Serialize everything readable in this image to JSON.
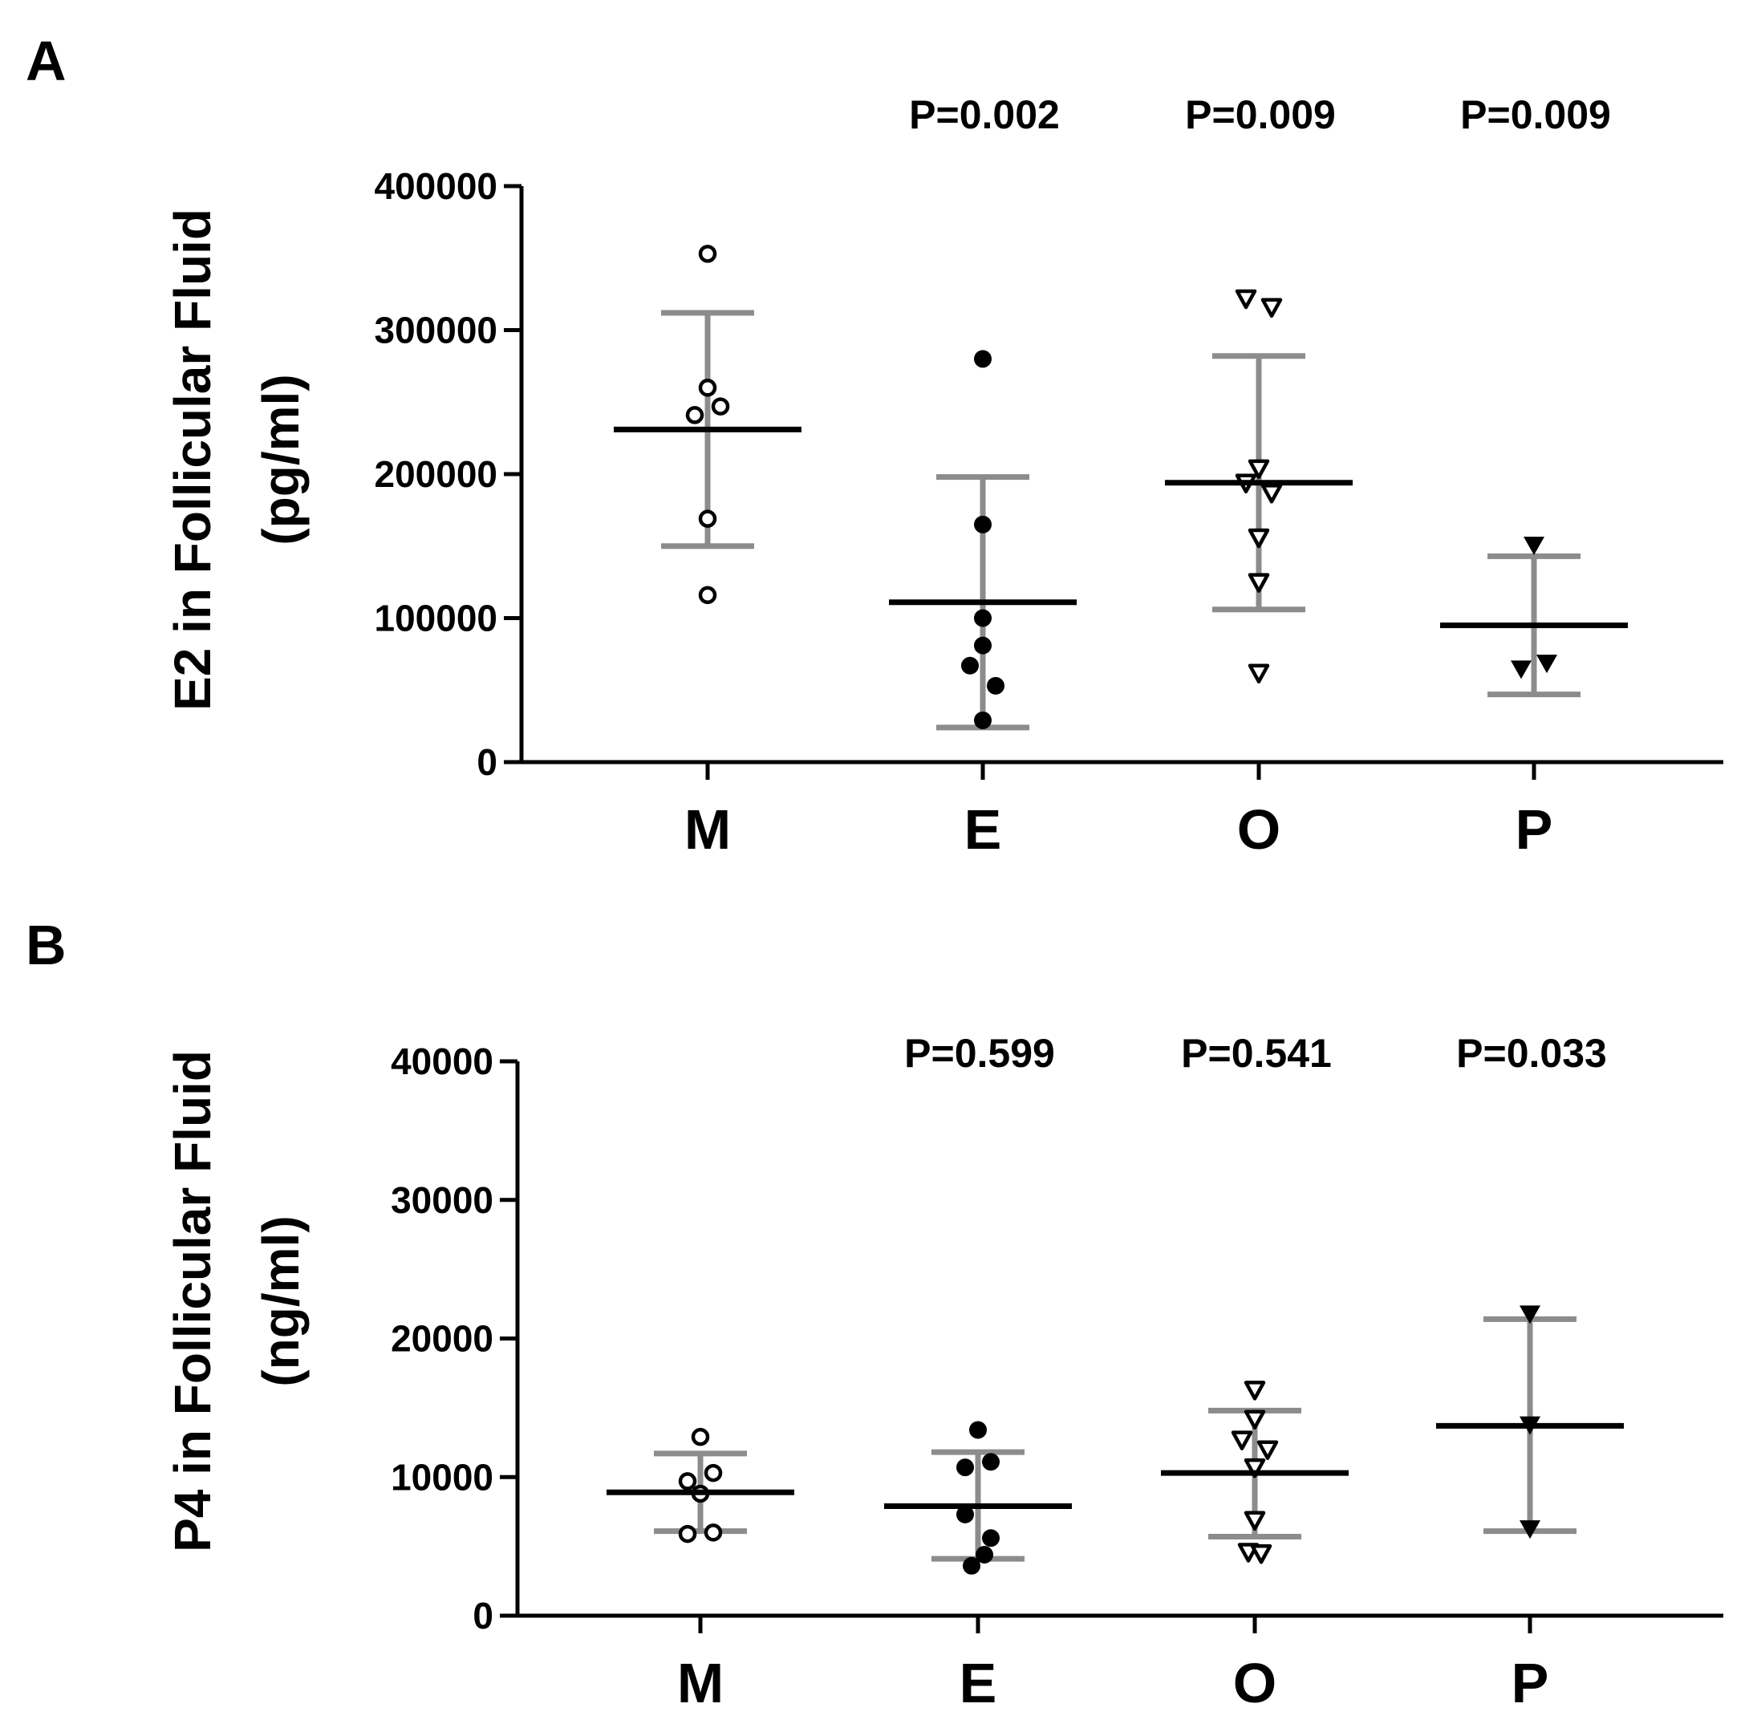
{
  "chart_data": [
    {
      "type": "scatter",
      "panel": "A",
      "ylabel_lines": [
        "E2 in Follicular Fluid",
        "(pg/ml)"
      ],
      "ylim": [
        0,
        400000
      ],
      "yticks": [
        0,
        100000,
        200000,
        300000,
        400000
      ],
      "ytick_labels": [
        "0",
        "100000",
        "200000",
        "300000",
        "400000"
      ],
      "categories": [
        "M",
        "E",
        "O",
        "P"
      ],
      "markers": [
        "open-circle",
        "filled-circle",
        "open-triangle-down",
        "filled-triangle-down"
      ],
      "p_values": [
        "",
        "P=0.002",
        "P=0.009",
        "P=0.009"
      ],
      "groups": [
        {
          "name": "M",
          "mean": 231000,
          "sd_low": 150000,
          "sd_high": 312000,
          "points": [
            {
              "y": 353000,
              "dx": 0
            },
            {
              "y": 260000,
              "dx": 0
            },
            {
              "y": 247000,
              "dx": 1
            },
            {
              "y": 241000,
              "dx": -1
            },
            {
              "y": 169000,
              "dx": 0
            },
            {
              "y": 116000,
              "dx": 0
            }
          ]
        },
        {
          "name": "E",
          "mean": 111000,
          "sd_low": 24000,
          "sd_high": 198000,
          "points": [
            {
              "y": 280000,
              "dx": 0
            },
            {
              "y": 165000,
              "dx": 0
            },
            {
              "y": 100000,
              "dx": 0
            },
            {
              "y": 81000,
              "dx": 0
            },
            {
              "y": 67000,
              "dx": -1
            },
            {
              "y": 53000,
              "dx": 1
            },
            {
              "y": 29000,
              "dx": 0
            }
          ]
        },
        {
          "name": "O",
          "mean": 194000,
          "sd_low": 106000,
          "sd_high": 282000,
          "points": [
            {
              "y": 322000,
              "dx": -1
            },
            {
              "y": 316000,
              "dx": 1
            },
            {
              "y": 204000,
              "dx": 0
            },
            {
              "y": 194000,
              "dx": -1
            },
            {
              "y": 187000,
              "dx": 1
            },
            {
              "y": 156000,
              "dx": 0
            },
            {
              "y": 125000,
              "dx": 0
            },
            {
              "y": 62000,
              "dx": 0
            }
          ]
        },
        {
          "name": "P",
          "mean": 95000,
          "sd_low": 47000,
          "sd_high": 143000,
          "points": [
            {
              "y": 151000,
              "dx": 0
            },
            {
              "y": 69000,
              "dx": 1
            },
            {
              "y": 65000,
              "dx": -1
            }
          ]
        }
      ]
    },
    {
      "type": "scatter",
      "panel": "B",
      "ylabel_lines": [
        "P4 in Follicular Fluid",
        "(ng/ml)"
      ],
      "ylim": [
        0,
        40000
      ],
      "yticks": [
        0,
        10000,
        20000,
        30000,
        40000
      ],
      "ytick_labels": [
        "0",
        "10000",
        "20000",
        "30000",
        "40000"
      ],
      "categories": [
        "M",
        "E",
        "O",
        "P"
      ],
      "markers": [
        "open-circle",
        "filled-circle",
        "open-triangle-down",
        "filled-triangle-down"
      ],
      "p_values": [
        "",
        "P=0.599",
        "P=0.541",
        "P=0.033"
      ],
      "groups": [
        {
          "name": "M",
          "mean": 8900,
          "sd_low": 6100,
          "sd_high": 11700,
          "points": [
            {
              "y": 12900,
              "dx": 0
            },
            {
              "y": 10300,
              "dx": 1
            },
            {
              "y": 9700,
              "dx": -1
            },
            {
              "y": 8800,
              "dx": 0
            },
            {
              "y": 6000,
              "dx": 1
            },
            {
              "y": 5900,
              "dx": -1
            }
          ]
        },
        {
          "name": "E",
          "mean": 7900,
          "sd_low": 4100,
          "sd_high": 11800,
          "points": [
            {
              "y": 13400,
              "dx": 0
            },
            {
              "y": 11100,
              "dx": 1
            },
            {
              "y": 10700,
              "dx": -1
            },
            {
              "y": 7300,
              "dx": -1
            },
            {
              "y": 5600,
              "dx": 1
            },
            {
              "y": 4400,
              "dx": 0.5
            },
            {
              "y": 3600,
              "dx": -0.5
            }
          ]
        },
        {
          "name": "O",
          "mean": 10300,
          "sd_low": 5700,
          "sd_high": 14800,
          "points": [
            {
              "y": 16300,
              "dx": 0
            },
            {
              "y": 14200,
              "dx": 0
            },
            {
              "y": 12700,
              "dx": -1
            },
            {
              "y": 12000,
              "dx": 1
            },
            {
              "y": 10700,
              "dx": 0
            },
            {
              "y": 6900,
              "dx": 0
            },
            {
              "y": 4600,
              "dx": -0.5
            },
            {
              "y": 4500,
              "dx": 0.5
            }
          ]
        },
        {
          "name": "P",
          "mean": 13700,
          "sd_low": 6100,
          "sd_high": 21400,
          "points": [
            {
              "y": 21800,
              "dx": 0
            },
            {
              "y": 13800,
              "dx": 0
            },
            {
              "y": 6300,
              "dx": 0
            }
          ]
        }
      ]
    }
  ]
}
